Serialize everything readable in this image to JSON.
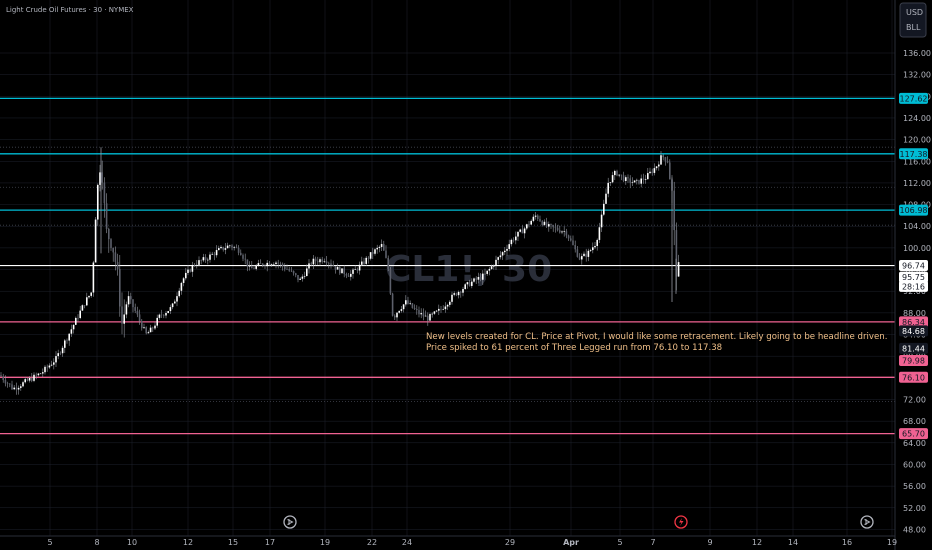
{
  "header": {
    "symbol_title": "Light Crude Oil Futures · 30 · NYMEX"
  },
  "watermark": {
    "symbol": "CL1!, 30"
  },
  "price_axis": {
    "currency": "USD",
    "unit": "BLL",
    "ticks": [
      "136.00",
      "132.00",
      "128.00",
      "124.00",
      "120.00",
      "116.00",
      "112.00",
      "108.00",
      "104.00",
      "100.00",
      "96.00",
      "92.00",
      "88.00",
      "84.00",
      "80.00",
      "76.00",
      "72.00",
      "68.00",
      "64.00",
      "60.00",
      "56.00",
      "52.00",
      "48.00"
    ]
  },
  "time_axis": {
    "ticks": [
      "5",
      "8",
      "10",
      "12",
      "15",
      "17",
      "19",
      "22",
      "24",
      "29",
      "Apr",
      "5",
      "7",
      "9",
      "12",
      "14",
      "16",
      "19"
    ]
  },
  "levels": [
    {
      "label": "127.62",
      "color": "#00bcd4"
    },
    {
      "label": "117.38",
      "color": "#00bcd4"
    },
    {
      "label": "106.98",
      "color": "#00bcd4"
    },
    {
      "label": "86.34",
      "color": "#f06292"
    },
    {
      "label": "76.10",
      "color": "#f06292"
    },
    {
      "label": "65.70",
      "color": "#f06292"
    }
  ],
  "price_tags": [
    {
      "label": "96.74",
      "bg": "#ffffff",
      "fg": "#131722"
    },
    {
      "label": "95.75",
      "bg": "#ffffff",
      "fg": "#131722"
    },
    {
      "label": "28:16",
      "bg": "#ffffff",
      "fg": "#131722"
    },
    {
      "label": "84.68",
      "bg": "#131722",
      "fg": "#ffffff"
    },
    {
      "label": "81.44",
      "bg": "#131722",
      "fg": "#ffffff"
    },
    {
      "label": "79.98",
      "bg": "#f06292",
      "fg": "#131722"
    }
  ],
  "annotation": {
    "line1": "New levels created for CL. Price at Pivot, I would like some retracement. Likely going to be headline driven.",
    "line2": "Price spiked to 61 percent of Three Legged run from 76.10 to 117.38"
  },
  "colors": {
    "bull": "#ffffff",
    "bear": "#5d606b",
    "wick": "#9598a1",
    "grid": "#1e222d",
    "dotted": "#434651"
  },
  "chart_data": {
    "type": "candlestick",
    "y_range": [
      47,
      140
    ],
    "x_categories": [
      "5",
      "8",
      "10",
      "12",
      "15",
      "17",
      "19",
      "22",
      "24",
      "29",
      "Apr",
      "5",
      "7",
      "9",
      "12",
      "14",
      "16",
      "19"
    ],
    "horizontal_levels": [
      127.62,
      117.38,
      106.98,
      96.74,
      86.34,
      76.1,
      65.7
    ],
    "dotted_levels": [
      118.6,
      111.2,
      104.2,
      71.6
    ],
    "price_path": [
      [
        0,
        76.5
      ],
      [
        13,
        74.0
      ],
      [
        28,
        75.5
      ],
      [
        42,
        77.0
      ],
      [
        56,
        79.5
      ],
      [
        70,
        84.5
      ],
      [
        85,
        90.0
      ],
      [
        92,
        92.0
      ],
      [
        96,
        108.0
      ],
      [
        101,
        117.0
      ],
      [
        106,
        103.0
      ],
      [
        112,
        101.0
      ],
      [
        117,
        96.0
      ],
      [
        122,
        86.0
      ],
      [
        128,
        91.0
      ],
      [
        136,
        88.0
      ],
      [
        146,
        84.0
      ],
      [
        152,
        85.0
      ],
      [
        160,
        87.5
      ],
      [
        172,
        89.0
      ],
      [
        182,
        94.0
      ],
      [
        194,
        97.0
      ],
      [
        206,
        98.0
      ],
      [
        218,
        99.5
      ],
      [
        230,
        100.5
      ],
      [
        240,
        99.5
      ],
      [
        250,
        96.0
      ],
      [
        262,
        97.0
      ],
      [
        275,
        97.5
      ],
      [
        288,
        96.0
      ],
      [
        300,
        94.0
      ],
      [
        312,
        97.5
      ],
      [
        325,
        98.0
      ],
      [
        338,
        96.0
      ],
      [
        350,
        95.0
      ],
      [
        362,
        97.0
      ],
      [
        372,
        99.0
      ],
      [
        382,
        100.5
      ],
      [
        388,
        96.5
      ],
      [
        393,
        87.0
      ],
      [
        398,
        88.5
      ],
      [
        406,
        90.0
      ],
      [
        418,
        88.0
      ],
      [
        428,
        87.0
      ],
      [
        440,
        88.5
      ],
      [
        455,
        91.5
      ],
      [
        470,
        93.5
      ],
      [
        485,
        95.0
      ],
      [
        500,
        98.5
      ],
      [
        512,
        101.5
      ],
      [
        524,
        103.5
      ],
      [
        536,
        106.0
      ],
      [
        546,
        104.0
      ],
      [
        556,
        103.5
      ],
      [
        566,
        103.0
      ],
      [
        574,
        100.0
      ],
      [
        580,
        98.0
      ],
      [
        588,
        99.0
      ],
      [
        596,
        101.0
      ],
      [
        602,
        106.0
      ],
      [
        608,
        112.0
      ],
      [
        616,
        114.0
      ],
      [
        626,
        112.5
      ],
      [
        636,
        112.0
      ],
      [
        646,
        113.0
      ],
      [
        656,
        115.0
      ],
      [
        662,
        117.0
      ],
      [
        668,
        116.0
      ],
      [
        672,
        110.0
      ],
      [
        676,
        96.0
      ],
      [
        680,
        95.75
      ]
    ]
  }
}
